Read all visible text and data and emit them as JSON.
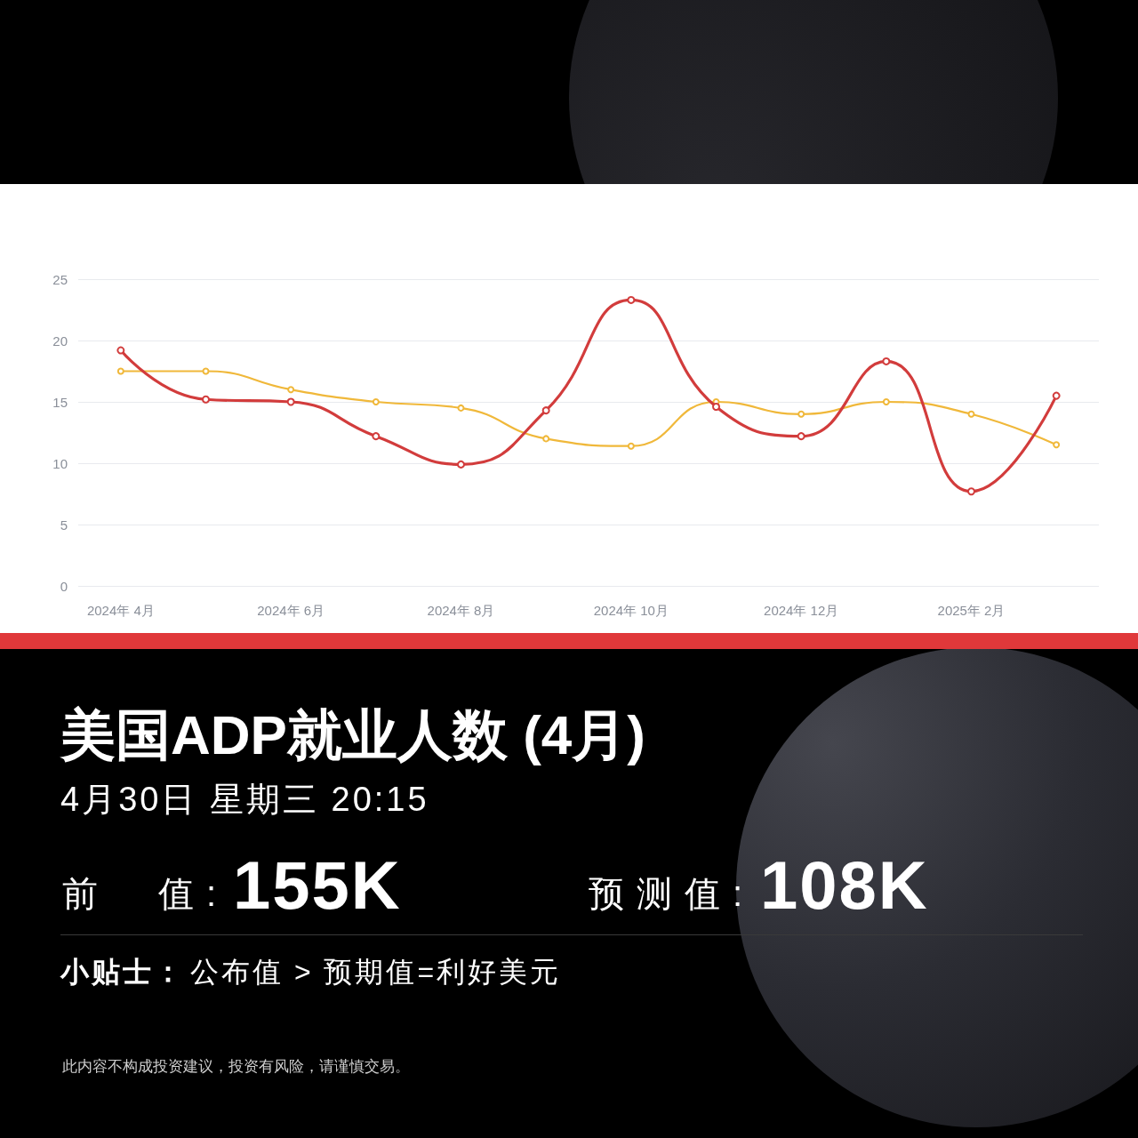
{
  "chart_data": {
    "type": "line",
    "title": "美国ADP就业人数 (4月)",
    "subtitle": "4月30日 星期三 20:15",
    "annotations": [
      "前　值:",
      "155K",
      "预测值:",
      "108K",
      "小贴士：",
      "公布值 > 预期值=利好美元",
      "此内容不构成投资建议，投资有风险，请谨慎交易。"
    ],
    "categories": [
      "2024年 4月",
      null,
      "2024年 6月",
      null,
      "2024年 8月",
      null,
      "2024年 10月",
      null,
      "2024年 12月",
      null,
      "2025年 2月",
      null
    ],
    "series": [
      {
        "color": "#d23c3c",
        "values": [
          19.2,
          15.2,
          15.0,
          12.2,
          9.9,
          14.3,
          23.3,
          14.6,
          12.2,
          18.3,
          7.7,
          15.5
        ]
      },
      {
        "color": "#f0b83a",
        "values": [
          17.5,
          17.5,
          16.0,
          15.0,
          14.5,
          12.0,
          11.4,
          15.0,
          14.0,
          15.0,
          14.0,
          11.5
        ]
      }
    ],
    "ylim": [
      0,
      25
    ],
    "yticks": [
      0,
      5,
      10,
      15,
      20,
      25
    ],
    "grid": "y",
    "marker": "circle",
    "line_style": "solid"
  }
}
